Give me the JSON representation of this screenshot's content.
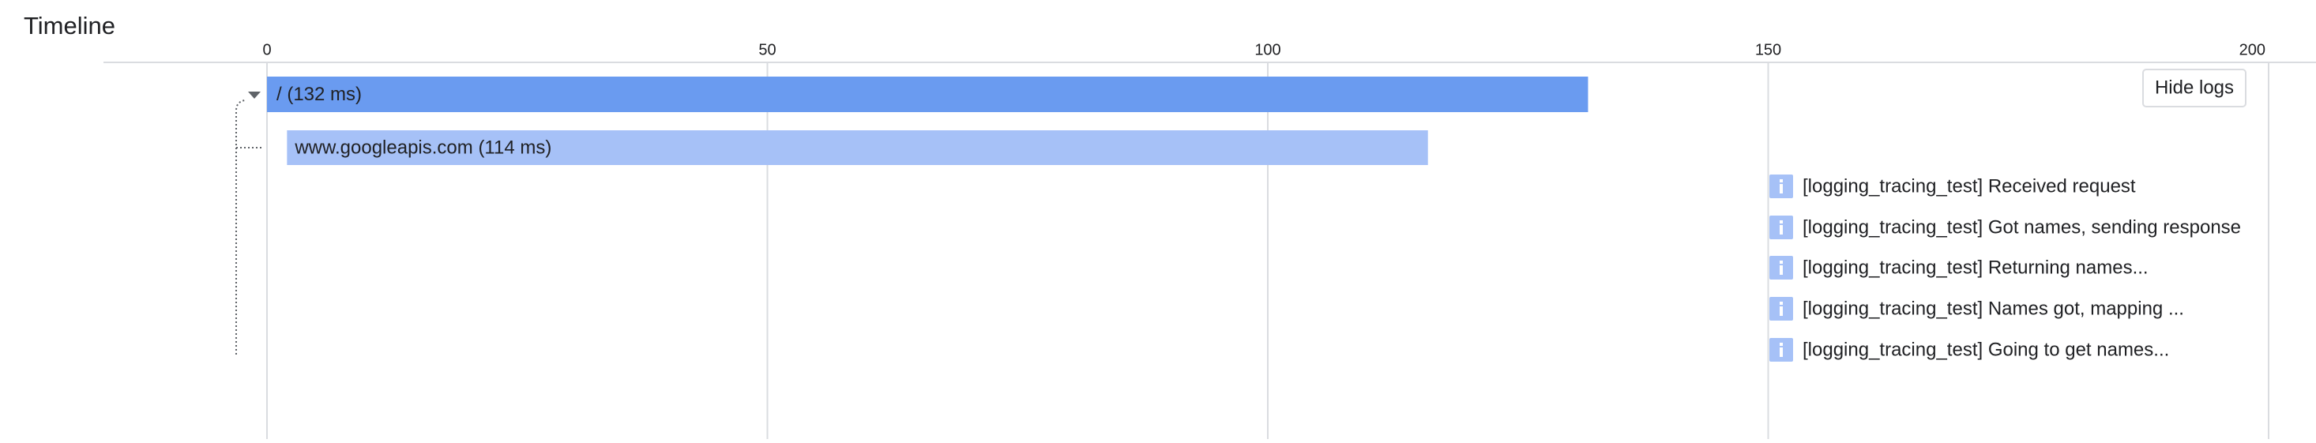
{
  "header": {
    "title": "Timeline",
    "button": "Hide logs"
  },
  "timeline": {
    "xlim": [
      0,
      200
    ],
    "xticks": [
      0,
      50,
      100,
      150,
      200
    ],
    "spans": [
      {
        "label": "/ (132 ms)",
        "start": 0,
        "duration": 132,
        "color": "#6a9bf0"
      },
      {
        "label": "www.googleapis.com (114 ms)",
        "start": 2,
        "duration": 114,
        "color": "#a6c1f7"
      }
    ],
    "logs": [
      "[logging_tracing_test] Received request",
      "[logging_tracing_test] Got names, sending response",
      "[logging_tracing_test] Returning names...",
      "[logging_tracing_test] Names got, mapping ...",
      "[logging_tracing_test] Going to get names..."
    ]
  }
}
